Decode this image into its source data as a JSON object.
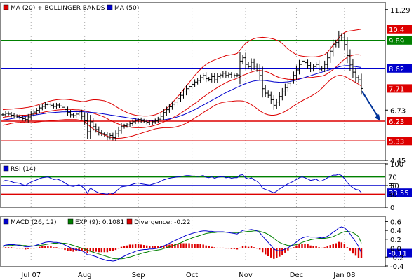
{
  "chart_data": [
    {
      "type": "line",
      "panel": "price",
      "subtype": "ohlc-bars",
      "legend": [
        {
          "name": "MA (20) + BOLLINGER BANDS",
          "color": "#dd0000"
        },
        {
          "name": "MA (50)",
          "color": "#0000cc"
        }
      ],
      "y_ticks": [
        "11.29",
        "6.73",
        "4.45"
      ],
      "ylim": [
        4.45,
        11.6
      ],
      "horizontal_lines": [
        {
          "label": "9.89",
          "value": 9.89,
          "color": "#008000"
        },
        {
          "label": "8.62",
          "value": 8.62,
          "color": "#0000cc"
        },
        {
          "label": "6.23",
          "value": 6.23,
          "color": "#dd0000"
        },
        {
          "label": "5.33",
          "value": 5.33,
          "color": "#dd0000"
        }
      ],
      "price_tags": [
        {
          "label": "10.4",
          "value": 10.4,
          "color": "#dd0000"
        },
        {
          "label": "9.89",
          "value": 9.89,
          "color": "#008000"
        },
        {
          "label": "8.62",
          "value": 8.62,
          "color": "#0000cc"
        },
        {
          "label": "7.71",
          "value": 7.71,
          "color": "#dd0000"
        },
        {
          "label": "6.23",
          "value": 6.23,
          "color": "#dd0000"
        },
        {
          "label": "5.33",
          "value": 5.33,
          "color": "#dd0000"
        }
      ],
      "projection_arrow": {
        "from": 7.71,
        "to": 6.23
      },
      "close": [
        6.52,
        6.58,
        6.55,
        6.5,
        6.46,
        6.44,
        6.4,
        6.34,
        6.3,
        6.42,
        6.55,
        6.64,
        6.72,
        6.83,
        6.9,
        6.98,
        7.0,
        6.95,
        6.9,
        6.96,
        6.92,
        6.86,
        6.75,
        6.62,
        6.52,
        6.48,
        6.55,
        6.6,
        6.45,
        6.25,
        5.75,
        6.2,
        5.98,
        5.85,
        5.72,
        5.66,
        5.62,
        5.5,
        5.58,
        5.48,
        5.65,
        5.82,
        5.98,
        6.02,
        6.06,
        6.12,
        6.2,
        6.26,
        6.3,
        6.25,
        6.22,
        6.18,
        6.15,
        6.2,
        6.25,
        6.32,
        6.45,
        6.62,
        6.75,
        6.88,
        7.0,
        7.1,
        7.25,
        7.4,
        7.55,
        7.7,
        7.8,
        7.9,
        8.0,
        8.08,
        8.2,
        8.3,
        8.15,
        8.12,
        8.25,
        8.1,
        8.25,
        8.32,
        8.4,
        8.3,
        8.35,
        8.28,
        8.3,
        8.32,
        8.95,
        9.1,
        8.8,
        8.7,
        8.9,
        8.72,
        8.6,
        8.3,
        7.7,
        7.5,
        7.4,
        7.2,
        6.95,
        7.1,
        7.35,
        7.55,
        7.75,
        7.95,
        8.1,
        8.3,
        8.55,
        8.8,
        8.95,
        8.88,
        8.75,
        8.6,
        8.7,
        8.8,
        8.58,
        8.62,
        8.8,
        9.1,
        9.4,
        9.7,
        9.8,
        10.1,
        10.0,
        9.7,
        9.2,
        8.8,
        8.45,
        8.2,
        8.1,
        7.71
      ],
      "ma20": [
        6.4,
        6.42,
        6.44,
        6.46,
        6.47,
        6.48,
        6.49,
        6.5,
        6.5,
        6.51,
        6.53,
        6.55,
        6.57,
        6.6,
        6.62,
        6.65,
        6.67,
        6.69,
        6.71,
        6.73,
        6.74,
        6.75,
        6.76,
        6.76,
        6.76,
        6.75,
        6.74,
        6.74,
        6.72,
        6.7,
        6.67,
        6.63,
        6.59,
        6.55,
        6.51,
        6.46,
        6.41,
        6.34,
        6.27,
        6.21,
        6.15,
        6.1,
        6.05,
        6.01,
        5.98,
        5.96,
        5.94,
        5.93,
        5.93,
        5.93,
        5.94,
        5.96,
        5.98,
        6.01,
        6.05,
        6.09,
        6.14,
        6.19,
        6.25,
        6.31,
        6.37,
        6.44,
        6.51,
        6.59,
        6.67,
        6.76,
        6.85,
        6.94,
        7.03,
        7.12,
        7.22,
        7.32,
        7.41,
        7.5,
        7.59,
        7.67,
        7.75,
        7.83,
        7.9,
        7.97,
        8.03,
        8.08,
        8.12,
        8.17,
        8.23,
        8.3,
        8.35,
        8.4,
        8.45,
        8.49,
        8.52,
        8.53,
        8.51,
        8.48,
        8.44,
        8.38,
        8.31,
        8.25,
        8.2,
        8.17,
        8.15,
        8.13,
        8.12,
        8.12,
        8.13,
        8.15,
        8.17,
        8.19,
        8.2,
        8.21,
        8.22,
        8.24,
        8.25,
        8.27,
        8.31,
        8.38,
        8.47,
        8.57,
        8.68,
        8.8,
        8.92,
        9.03,
        9.12,
        9.18,
        9.22,
        9.24,
        9.24,
        9.22
      ],
      "bb_upper": [
        6.75,
        6.76,
        6.77,
        6.78,
        6.79,
        6.8,
        6.81,
        6.82,
        6.84,
        6.86,
        6.88,
        6.91,
        6.95,
        6.99,
        7.03,
        7.08,
        7.12,
        7.15,
        7.18,
        7.2,
        7.21,
        7.22,
        7.22,
        7.21,
        7.2,
        7.18,
        7.16,
        7.14,
        7.12,
        7.12,
        7.15,
        7.18,
        7.2,
        7.2,
        7.19,
        7.17,
        7.15,
        7.1,
        7.05,
        6.98,
        6.9,
        6.82,
        6.75,
        6.68,
        6.62,
        6.57,
        6.53,
        6.5,
        6.48,
        6.47,
        6.46,
        6.46,
        6.47,
        6.49,
        6.52,
        6.57,
        6.63,
        6.71,
        6.81,
        6.93,
        7.06,
        7.2,
        7.35,
        7.5,
        7.66,
        7.82,
        7.98,
        8.14,
        8.3,
        8.44,
        8.58,
        8.7,
        8.8,
        8.88,
        8.95,
        9.0,
        9.05,
        9.1,
        9.15,
        9.2,
        9.22,
        9.24,
        9.26,
        9.3,
        9.45,
        9.62,
        9.75,
        9.85,
        9.92,
        9.97,
        10.0,
        10.02,
        10.03,
        10.02,
        10.0,
        9.98,
        9.95,
        9.9,
        9.85,
        9.75,
        9.62,
        9.5,
        9.4,
        9.32,
        9.25,
        9.2,
        9.18,
        9.16,
        9.15,
        9.14,
        9.14,
        9.15,
        9.17,
        9.2,
        9.25,
        9.35,
        9.5,
        9.68,
        9.85,
        10.0,
        10.15,
        10.25,
        10.3,
        10.32,
        10.34,
        10.36,
        10.38,
        10.4
      ],
      "bb_lower": [
        6.05,
        6.07,
        6.1,
        6.13,
        6.15,
        6.17,
        6.18,
        6.19,
        6.18,
        6.17,
        6.17,
        6.18,
        6.19,
        6.2,
        6.22,
        6.23,
        6.24,
        6.25,
        6.26,
        6.27,
        6.28,
        6.29,
        6.3,
        6.3,
        6.3,
        6.3,
        6.3,
        6.28,
        6.25,
        6.2,
        6.1,
        5.98,
        5.88,
        5.8,
        5.72,
        5.65,
        5.6,
        5.55,
        5.5,
        5.47,
        5.45,
        5.45,
        5.46,
        5.48,
        5.5,
        5.53,
        5.56,
        5.6,
        5.64,
        5.68,
        5.72,
        5.76,
        5.8,
        5.84,
        5.88,
        5.9,
        5.92,
        5.93,
        5.93,
        5.93,
        5.94,
        5.96,
        5.99,
        6.03,
        6.08,
        6.14,
        6.21,
        6.29,
        6.37,
        6.45,
        6.53,
        6.62,
        6.7,
        6.78,
        6.86,
        6.94,
        7.0,
        7.05,
        7.08,
        7.1,
        7.12,
        7.13,
        7.14,
        7.15,
        7.15,
        7.14,
        7.1,
        7.05,
        6.98,
        6.9,
        6.8,
        6.7,
        6.62,
        6.56,
        6.52,
        6.5,
        6.5,
        6.52,
        6.56,
        6.6,
        6.67,
        6.75,
        6.83,
        6.92,
        7.0,
        7.08,
        7.15,
        7.22,
        7.28,
        7.35,
        7.42,
        7.5,
        7.6,
        7.72,
        7.85,
        7.98,
        8.1,
        8.2,
        8.27,
        8.3,
        8.3,
        8.26,
        8.2,
        8.12,
        8.05,
        7.98,
        7.9,
        7.82
      ],
      "ma50": [
        6.28,
        6.3,
        6.32,
        6.34,
        6.36,
        6.38,
        6.4,
        6.42,
        6.44,
        6.46,
        6.48,
        6.5,
        6.52,
        6.54,
        6.56,
        6.58,
        6.6,
        6.61,
        6.62,
        6.63,
        6.64,
        6.65,
        6.65,
        6.66,
        6.66,
        6.66,
        6.66,
        6.66,
        6.66,
        6.65,
        6.64,
        6.63,
        6.62,
        6.61,
        6.59,
        6.57,
        6.55,
        6.53,
        6.51,
        6.49,
        6.47,
        6.45,
        6.43,
        6.41,
        6.39,
        6.37,
        6.35,
        6.33,
        6.31,
        6.29,
        6.28,
        6.27,
        6.26,
        6.26,
        6.26,
        6.27,
        6.28,
        6.29,
        6.31,
        6.33,
        6.36,
        6.39,
        6.43,
        6.47,
        6.52,
        6.57,
        6.63,
        6.69,
        6.75,
        6.82,
        6.89,
        6.96,
        7.03,
        7.1,
        7.17,
        7.24,
        7.31,
        7.38,
        7.45,
        7.52,
        7.58,
        7.64,
        7.7,
        7.76,
        7.82,
        7.88,
        7.93,
        7.98,
        8.02,
        8.05,
        8.07,
        8.08,
        8.08,
        8.07,
        8.05,
        8.03,
        8.01,
        8.0,
        7.99,
        7.99,
        8.0,
        8.01,
        8.03,
        8.06,
        8.09,
        8.13,
        8.17,
        8.21,
        8.25,
        8.29,
        8.33,
        8.37,
        8.41,
        8.45,
        8.49,
        8.53,
        8.57,
        8.61,
        8.65,
        8.69,
        8.72,
        8.74,
        8.75,
        8.74,
        8.72,
        8.7,
        8.68,
        8.66
      ]
    },
    {
      "type": "line",
      "panel": "rsi",
      "legend": [
        {
          "name": "RSI (14)",
          "color": "#0000cc"
        }
      ],
      "y_ticks": [
        "100",
        "50",
        "0"
      ],
      "ylim": [
        0,
        100
      ],
      "horizontal_lines": [
        {
          "label": "70",
          "value": 70,
          "color": "#008000"
        },
        {
          "label": "50",
          "value": 50,
          "color": "#0000cc"
        },
        {
          "label": "30",
          "value": 30,
          "color": "#dd0000"
        }
      ],
      "value_tag": {
        "label": "33.55",
        "value": 33.55,
        "color": "#0000cc"
      },
      "values": [
        60,
        62,
        61,
        59,
        57,
        56,
        55,
        52,
        50,
        54,
        58,
        61,
        63,
        66,
        68,
        69,
        70,
        67,
        64,
        65,
        63,
        60,
        56,
        52,
        49,
        48,
        50,
        52,
        48,
        42,
        32,
        44,
        40,
        36,
        33,
        32,
        31,
        30,
        33,
        31,
        36,
        42,
        47,
        48,
        49,
        51,
        53,
        55,
        56,
        54,
        53,
        52,
        51,
        53,
        55,
        57,
        60,
        63,
        65,
        67,
        68,
        69,
        70,
        71,
        72,
        73,
        73,
        72,
        72,
        71,
        72,
        73,
        69,
        68,
        70,
        67,
        69,
        70,
        71,
        68,
        69,
        67,
        68,
        68,
        74,
        75,
        68,
        65,
        68,
        63,
        60,
        54,
        44,
        41,
        39,
        36,
        33,
        37,
        42,
        46,
        50,
        54,
        57,
        60,
        64,
        68,
        70,
        68,
        65,
        62,
        63,
        65,
        60,
        61,
        64,
        68,
        71,
        74,
        74,
        76,
        73,
        66,
        57,
        50,
        45,
        41,
        40,
        33.55
      ]
    },
    {
      "type": "line",
      "panel": "macd",
      "legend": [
        {
          "name": "MACD (26, 12)",
          "color": "#0000cc"
        },
        {
          "name": "EXP (9): 0.1081",
          "color": "#008000"
        },
        {
          "name": "Divergence: -0.22",
          "color": "#dd0000"
        }
      ],
      "y_ticks": [
        "0.6",
        "0.4",
        "0.2",
        "0.0",
        "-0.2",
        "-0.4"
      ],
      "ylim": [
        -0.4,
        0.7
      ],
      "value_tag": {
        "label": "-0.11",
        "value": -0.11,
        "color": "#0000cc"
      },
      "macd": [
        0.05,
        0.07,
        0.08,
        0.08,
        0.08,
        0.07,
        0.06,
        0.05,
        0.03,
        0.03,
        0.04,
        0.05,
        0.07,
        0.09,
        0.11,
        0.13,
        0.14,
        0.14,
        0.13,
        0.13,
        0.12,
        0.1,
        0.07,
        0.04,
        0.01,
        -0.02,
        -0.03,
        -0.04,
        -0.06,
        -0.09,
        -0.15,
        -0.15,
        -0.17,
        -0.19,
        -0.22,
        -0.24,
        -0.26,
        -0.28,
        -0.28,
        -0.29,
        -0.28,
        -0.25,
        -0.21,
        -0.18,
        -0.15,
        -0.12,
        -0.1,
        -0.07,
        -0.05,
        -0.04,
        -0.03,
        -0.03,
        -0.02,
        -0.02,
        -0.01,
        0.0,
        0.02,
        0.05,
        0.08,
        0.11,
        0.14,
        0.17,
        0.2,
        0.23,
        0.26,
        0.29,
        0.31,
        0.33,
        0.35,
        0.36,
        0.38,
        0.39,
        0.39,
        0.38,
        0.38,
        0.37,
        0.37,
        0.37,
        0.37,
        0.36,
        0.35,
        0.34,
        0.33,
        0.32,
        0.36,
        0.4,
        0.41,
        0.41,
        0.42,
        0.41,
        0.39,
        0.35,
        0.27,
        0.2,
        0.13,
        0.06,
        -0.02,
        -0.05,
        -0.06,
        -0.05,
        -0.02,
        0.01,
        0.05,
        0.09,
        0.14,
        0.19,
        0.23,
        0.25,
        0.26,
        0.25,
        0.25,
        0.25,
        0.24,
        0.23,
        0.24,
        0.27,
        0.31,
        0.36,
        0.4,
        0.46,
        0.48,
        0.46,
        0.4,
        0.32,
        0.23,
        0.14,
        0.04,
        -0.11
      ],
      "signal": [
        0.04,
        0.05,
        0.06,
        0.06,
        0.07,
        0.07,
        0.07,
        0.06,
        0.06,
        0.05,
        0.05,
        0.05,
        0.06,
        0.06,
        0.07,
        0.08,
        0.09,
        0.1,
        0.11,
        0.11,
        0.12,
        0.11,
        0.11,
        0.1,
        0.08,
        0.06,
        0.04,
        0.02,
        0.0,
        -0.02,
        -0.04,
        -0.07,
        -0.09,
        -0.11,
        -0.13,
        -0.15,
        -0.17,
        -0.19,
        -0.21,
        -0.23,
        -0.24,
        -0.24,
        -0.24,
        -0.23,
        -0.21,
        -0.2,
        -0.18,
        -0.16,
        -0.14,
        -0.12,
        -0.1,
        -0.09,
        -0.07,
        -0.06,
        -0.05,
        -0.04,
        -0.03,
        -0.01,
        0.01,
        0.03,
        0.05,
        0.07,
        0.1,
        0.12,
        0.15,
        0.18,
        0.2,
        0.23,
        0.25,
        0.27,
        0.29,
        0.31,
        0.33,
        0.34,
        0.35,
        0.35,
        0.36,
        0.36,
        0.36,
        0.36,
        0.36,
        0.36,
        0.35,
        0.35,
        0.35,
        0.36,
        0.37,
        0.38,
        0.38,
        0.39,
        0.39,
        0.38,
        0.36,
        0.34,
        0.31,
        0.27,
        0.22,
        0.17,
        0.13,
        0.1,
        0.08,
        0.06,
        0.06,
        0.07,
        0.08,
        0.1,
        0.13,
        0.15,
        0.17,
        0.19,
        0.2,
        0.21,
        0.22,
        0.22,
        0.22,
        0.23,
        0.24,
        0.26,
        0.29,
        0.32,
        0.35,
        0.37,
        0.38,
        0.37,
        0.35,
        0.31,
        0.26,
        0.11
      ]
    }
  ],
  "x_axis": {
    "labels": [
      "Jul 07",
      "Aug",
      "Sep",
      "Oct",
      "Nov",
      "Dec",
      "Jan 08"
    ]
  },
  "colors": {
    "green": "#008000",
    "blue": "#0000cc",
    "red": "#dd0000",
    "grid": "#aaaaaa",
    "bars": "#000000"
  }
}
